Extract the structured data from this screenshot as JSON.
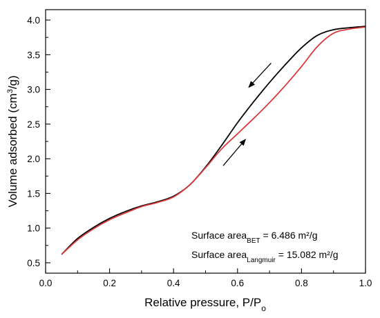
{
  "chart_data": {
    "type": "line",
    "xlabel": "Relative pressure, P/Po",
    "xlabel_main": "Relative pressure, P/P",
    "xlabel_sub": "o",
    "ylabel": "Volume adsorbed (cm3/g)",
    "ylabel_pre": "Volume adsorbed (cm",
    "ylabel_sup": "3",
    "ylabel_post": "/g)",
    "xlim": [
      0.0,
      1.0
    ],
    "ylim": [
      0.35,
      4.15
    ],
    "x_ticks": [
      "0.0",
      "0.2",
      "0.4",
      "0.6",
      "0.8",
      "1.0"
    ],
    "y_ticks": [
      "0.5",
      "1.0",
      "1.5",
      "2.0",
      "2.5",
      "3.0",
      "3.5",
      "4.0"
    ],
    "grid": false,
    "legend": "none",
    "series": [
      {
        "color": "#000000",
        "x": [
          0.05,
          0.1,
          0.15,
          0.2,
          0.25,
          0.3,
          0.35,
          0.4,
          0.45,
          0.5,
          0.55,
          0.6,
          0.65,
          0.7,
          0.75,
          0.8,
          0.85,
          0.9,
          0.95,
          1.0
        ],
        "y": [
          0.62,
          0.85,
          1.01,
          1.14,
          1.24,
          1.32,
          1.38,
          1.46,
          1.62,
          1.88,
          2.19,
          2.52,
          2.82,
          3.1,
          3.36,
          3.6,
          3.78,
          3.86,
          3.89,
          3.91
        ]
      },
      {
        "color": "#d9393b",
        "x": [
          0.05,
          0.1,
          0.15,
          0.2,
          0.25,
          0.3,
          0.35,
          0.4,
          0.45,
          0.5,
          0.55,
          0.6,
          0.65,
          0.7,
          0.75,
          0.8,
          0.85,
          0.9,
          0.95,
          1.0
        ],
        "y": [
          0.62,
          0.83,
          0.99,
          1.12,
          1.22,
          1.31,
          1.37,
          1.45,
          1.62,
          1.87,
          2.14,
          2.36,
          2.58,
          2.81,
          3.06,
          3.33,
          3.62,
          3.81,
          3.87,
          3.9
        ]
      }
    ],
    "arrows": [
      {
        "direction": "desorption",
        "from": [
          0.705,
          3.38
        ],
        "to": [
          0.635,
          3.03
        ]
      },
      {
        "direction": "adsorption",
        "from": [
          0.555,
          1.9
        ],
        "to": [
          0.625,
          2.28
        ]
      }
    ],
    "annotations": {
      "bet_main": "Surface area",
      "bet_sub": "BET",
      "bet_value": " = 6.486 m²/g",
      "langmuir_main": "Surface area",
      "langmuir_sub": "Langmuir",
      "langmuir_value": " = 15.082 m²/g"
    }
  }
}
